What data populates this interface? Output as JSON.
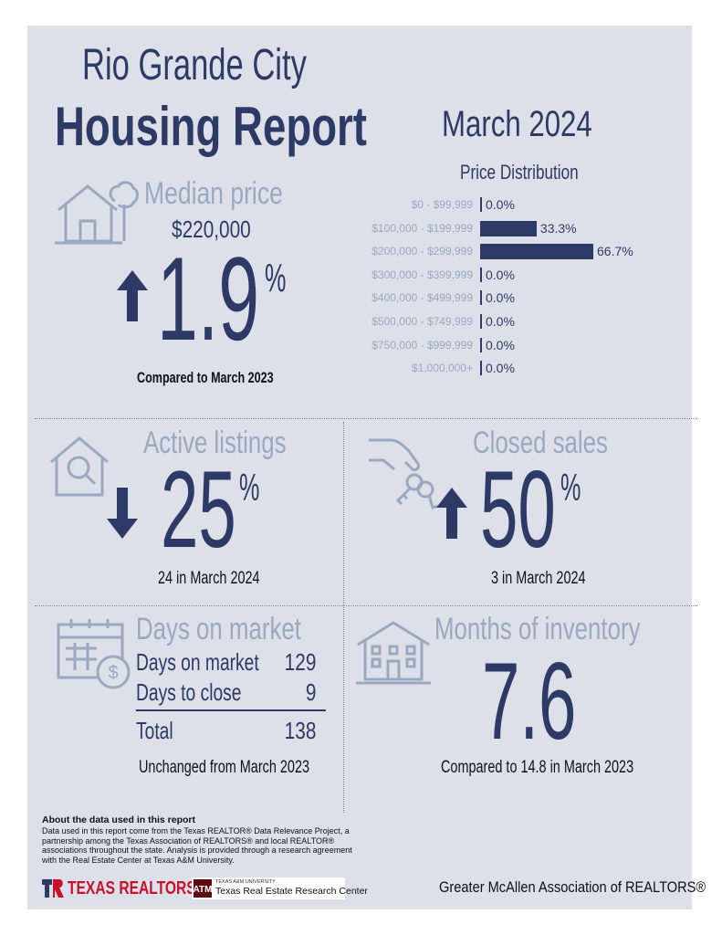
{
  "header": {
    "city": "Rio Grande City",
    "report_title": "Housing Report",
    "period": "March 2024"
  },
  "median_price": {
    "title": "Median price",
    "value": "$220,000",
    "change": "1.9",
    "percent_sign": "%",
    "direction": "up",
    "comparison": "Compared to March 2023"
  },
  "price_distribution": {
    "title": "Price Distribution",
    "rows": [
      {
        "label": "$0 - $99,999",
        "value": "0.0%",
        "pct": 0.0
      },
      {
        "label": "$100,000 - $199,999",
        "value": "33.3%",
        "pct": 33.3
      },
      {
        "label": "$200,000 - $299,999",
        "value": "66.7%",
        "pct": 66.7
      },
      {
        "label": "$300,000 - $399,999",
        "value": "0.0%",
        "pct": 0.0
      },
      {
        "label": "$400,000 - $499,999",
        "value": "0.0%",
        "pct": 0.0
      },
      {
        "label": "$500,000 - $749,999",
        "value": "0.0%",
        "pct": 0.0
      },
      {
        "label": "$750,000 - $999,999",
        "value": "0.0%",
        "pct": 0.0
      },
      {
        "label": "$1,000,000+",
        "value": "0.0%",
        "pct": 0.0
      }
    ]
  },
  "chart_data": {
    "type": "bar",
    "title": "Price Distribution",
    "categories": [
      "$0 - $99,999",
      "$100,000 - $199,999",
      "$200,000 - $299,999",
      "$300,000 - $399,999",
      "$400,000 - $499,999",
      "$500,000 - $749,999",
      "$750,000 - $999,999",
      "$1,000,000+"
    ],
    "values": [
      0.0,
      33.3,
      66.7,
      0.0,
      0.0,
      0.0,
      0.0,
      0.0
    ],
    "orientation": "horizontal",
    "unit": "%"
  },
  "active_listings": {
    "title": "Active listings",
    "change": "25",
    "percent_sign": "%",
    "direction": "down",
    "detail": "24 in March 2024"
  },
  "closed_sales": {
    "title": "Closed sales",
    "change": "50",
    "percent_sign": "%",
    "direction": "up",
    "detail": "3 in March 2024"
  },
  "days_on_market": {
    "title": "Days on market",
    "rows": [
      {
        "label": "Days on market",
        "value": "129"
      },
      {
        "label": "Days to close",
        "value": "9"
      }
    ],
    "total_label": "Total",
    "total_value": "138",
    "comparison": "Unchanged from March 2023"
  },
  "months_inventory": {
    "title": "Months of inventory",
    "value": "7.6",
    "comparison": "Compared to 14.8 in March 2023"
  },
  "footer": {
    "about_title": "About the data used in this report",
    "about_lines": [
      "Data used in this report come from the Texas REALTOR® Data Relevance Project, a",
      "partnership among the Texas Association of REALTORS® and local REALTOR®",
      "associations throughout the state. Analysis is provided through a research agreement",
      "with the Real Estate Center at Texas A&M University."
    ],
    "logo_texas_realtors": "TEXAS REALTORS",
    "logo_tamu_small": "TEXAS A&M UNIVERSITY",
    "logo_tamu": "Texas Real Estate Research Center",
    "association": "Greater McAllen Association of REALTORS®"
  },
  "colors": {
    "navy": "#2e3a66",
    "gray_blue": "#9aa9c0",
    "background": "#dde0e8",
    "red": "#c8102e"
  }
}
